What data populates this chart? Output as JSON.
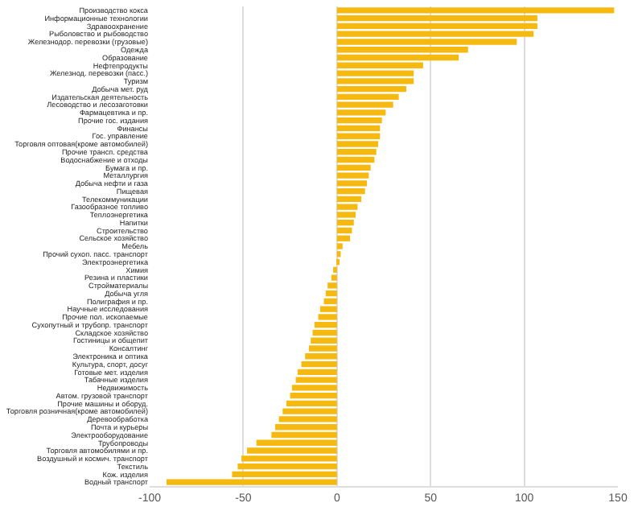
{
  "chart_data": {
    "type": "bar",
    "orientation": "horizontal",
    "color": "#f5b90f",
    "grid": "x",
    "legend": false,
    "categories": [
      "Производство кокса",
      "Информационные технологии",
      "Здравоохранение",
      "Рыболовство и рыбоводство",
      "Железнодор. перевозки (грузовые)",
      "Одежда",
      "Образование",
      "Нефтепродукты",
      "Железнод. перевозки (пасс.)",
      "Туризм",
      "Добыча мет. руд",
      "Издательская деятельность",
      "Лесоводство и лесозаготовки",
      "Фармацевтика и пр.",
      "Прочие гос. издания",
      "Финансы",
      "Гос. управление",
      "Торговля оптовая(кроме автомобилей)",
      "Прочие трансп. средства",
      "Водоснабжение и отходы",
      "Бумага и пр.",
      "Металлургия",
      "Добыча нефти и газа",
      "Пищевая",
      "Телекоммуникации",
      "Газообразное топливо",
      "Теплоэнергетика",
      "Напитки",
      "Строительство",
      "Сельское хозяйство",
      "Мебель",
      "Прочий сухоп. пасс. транспорт",
      "Электроэнергетика",
      "Химия",
      "Резина и пластики",
      "Стройматериалы",
      "Добыча угля",
      "Полиграфия и пр.",
      "Научные исследования",
      "Прочие пол. ископаемые",
      "Сухопутный и трубопр. транспорт",
      "Складское хозяйство",
      "Гостиницы и общепит",
      "Консалтинг",
      "Электроника и оптика",
      "Культура, спорт, досуг",
      "Готовые мет. изделия",
      "Табачные изделия",
      "Недвижимость",
      "Автом. грузовой транспорт",
      "Прочие машины и оборуд.",
      "Торговля розничная(кроме автомобилей)",
      "Деревообработка",
      "Почта и курьеры",
      "Электрооборудование",
      "Трубопроводы",
      "Торговля автомобилями и пр.",
      "Воздушный и космич. транспорт",
      "Текстиль",
      "Кож. изделия",
      "Водный транспорт"
    ],
    "values": [
      148,
      107,
      107,
      105,
      96,
      70,
      65,
      46,
      41,
      41,
      37,
      33,
      30,
      26,
      24,
      23,
      23,
      22,
      21,
      20,
      18,
      17,
      16,
      15,
      13,
      11,
      10,
      9,
      8,
      7,
      3,
      2,
      1,
      -2,
      -3,
      -5,
      -6,
      -7,
      -9,
      -10,
      -12,
      -13,
      -14,
      -15,
      -17,
      -19,
      -21,
      -22,
      -24,
      -25,
      -27,
      -29,
      -31,
      -33,
      -35,
      -43,
      -48,
      -51,
      -53,
      -56,
      -91
    ],
    "xlim": [
      -100,
      150
    ],
    "xticks": [
      -100,
      -50,
      0,
      50,
      100,
      150
    ]
  }
}
